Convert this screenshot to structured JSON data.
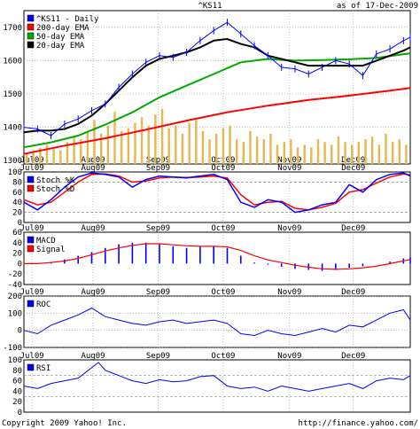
{
  "header": {
    "symbol": "^KS11",
    "as_of": "as of 17-Dec-2009"
  },
  "footer": {
    "copyright": "Copyright 2009 Yahoo! Inc.",
    "url": "http://finance.yahoo.com/"
  },
  "colors": {
    "price": "#0000ff",
    "ema200": "#ff0000",
    "ema50": "#00aa00",
    "ema20": "#000000",
    "volume": "#e6b84f",
    "stoch_k": "#0000ff",
    "stoch_d": "#ff0000",
    "macd": "#0000ff",
    "signal": "#ff0000",
    "roc": "#0000ff",
    "rsi": "#0000ff"
  },
  "x_axis": {
    "ticks": [
      {
        "label": "Jul09",
        "day": 6
      },
      {
        "label": "Aug09",
        "day": 51
      },
      {
        "label": "Sep09",
        "day": 99
      },
      {
        "label": "Oct09",
        "day": 147
      },
      {
        "label": "Nov09",
        "day": 196
      },
      {
        "label": "Dec09",
        "day": 243
      }
    ],
    "total_days": 285
  },
  "chart_data": [
    {
      "type": "line",
      "panel": "price",
      "ylim": [
        1290,
        1750
      ],
      "yticks": [
        1300,
        1400,
        1500,
        1600,
        1700
      ],
      "legend": [
        "^KS11 - Daily",
        "200-day EMA",
        "50-day EMA",
        "20-day EMA"
      ],
      "series": [
        {
          "name": "^KS11 - Daily",
          "x": [
            0,
            10,
            20,
            30,
            40,
            50,
            60,
            70,
            80,
            90,
            100,
            110,
            120,
            130,
            140,
            150,
            160,
            170,
            180,
            190,
            200,
            210,
            220,
            230,
            240,
            250,
            260,
            270,
            280,
            285
          ],
          "values": [
            1400,
            1395,
            1375,
            1410,
            1425,
            1450,
            1470,
            1520,
            1560,
            1595,
            1615,
            1610,
            1625,
            1660,
            1690,
            1715,
            1680,
            1645,
            1615,
            1580,
            1575,
            1560,
            1580,
            1600,
            1590,
            1555,
            1620,
            1635,
            1660,
            1670
          ]
        },
        {
          "name": "200-day EMA",
          "x": [
            0,
            30,
            60,
            90,
            120,
            150,
            180,
            210,
            240,
            270,
            285
          ],
          "values": [
            1320,
            1345,
            1367,
            1393,
            1420,
            1445,
            1465,
            1482,
            1495,
            1510,
            1518
          ]
        },
        {
          "name": "50-day EMA",
          "x": [
            0,
            20,
            40,
            60,
            80,
            100,
            120,
            140,
            160,
            180,
            200,
            220,
            240,
            260,
            285
          ],
          "values": [
            1340,
            1355,
            1375,
            1408,
            1445,
            1490,
            1525,
            1560,
            1595,
            1605,
            1600,
            1602,
            1604,
            1608,
            1622
          ]
        },
        {
          "name": "20-day EMA",
          "x": [
            0,
            10,
            20,
            30,
            40,
            50,
            60,
            70,
            80,
            90,
            100,
            110,
            120,
            130,
            140,
            150,
            160,
            170,
            180,
            190,
            200,
            210,
            220,
            230,
            240,
            250,
            260,
            270,
            280,
            285
          ],
          "values": [
            1385,
            1390,
            1390,
            1395,
            1410,
            1435,
            1470,
            1510,
            1550,
            1585,
            1605,
            1615,
            1625,
            1640,
            1660,
            1665,
            1650,
            1640,
            1615,
            1605,
            1595,
            1585,
            1585,
            1585,
            1585,
            1585,
            1600,
            1615,
            1630,
            1640
          ]
        }
      ]
    },
    {
      "type": "bar",
      "panel": "volume",
      "x": [
        2,
        7,
        12,
        17,
        22,
        27,
        32,
        37,
        42,
        47,
        52,
        57,
        62,
        67,
        72,
        77,
        82,
        87,
        92,
        97,
        102,
        107,
        112,
        117,
        122,
        127,
        132,
        137,
        142,
        147,
        152,
        157,
        162,
        167,
        172,
        177,
        182,
        187,
        192,
        197,
        202,
        207,
        212,
        217,
        222,
        227,
        232,
        237,
        242,
        247,
        252,
        257,
        262,
        267,
        272,
        277,
        282
      ],
      "values": [
        0.2,
        0.25,
        0.3,
        0.35,
        0.3,
        0.25,
        0.4,
        0.5,
        0.45,
        0.6,
        0.8,
        0.55,
        0.7,
        0.95,
        0.6,
        0.65,
        0.75,
        0.85,
        0.7,
        0.9,
        1.0,
        0.65,
        0.7,
        0.55,
        0.75,
        0.8,
        0.6,
        0.45,
        0.55,
        0.65,
        0.7,
        0.45,
        0.4,
        0.6,
        0.5,
        0.45,
        0.55,
        0.35,
        0.4,
        0.45,
        0.3,
        0.35,
        0.3,
        0.45,
        0.4,
        0.35,
        0.5,
        0.4,
        0.35,
        0.4,
        0.45,
        0.5,
        0.35,
        0.55,
        0.4,
        0.45,
        0.35
      ]
    },
    {
      "type": "line",
      "panel": "stochastic",
      "ylim": [
        0,
        100
      ],
      "yticks": [
        0,
        20,
        40,
        60,
        80,
        100
      ],
      "ref_lines": [
        20,
        80
      ],
      "legend": [
        "Stoch %K",
        "Stoch %D"
      ],
      "series": [
        {
          "name": "Stoch %K",
          "x": [
            0,
            10,
            20,
            30,
            40,
            50,
            60,
            70,
            80,
            90,
            100,
            110,
            120,
            130,
            140,
            150,
            160,
            170,
            180,
            190,
            200,
            210,
            220,
            230,
            240,
            250,
            260,
            270,
            280,
            285
          ],
          "values": [
            40,
            25,
            45,
            70,
            90,
            98,
            95,
            90,
            70,
            85,
            92,
            90,
            88,
            92,
            95,
            85,
            40,
            30,
            45,
            40,
            20,
            25,
            35,
            40,
            75,
            60,
            85,
            95,
            98,
            92
          ]
        },
        {
          "name": "Stoch %D",
          "x": [
            0,
            10,
            20,
            30,
            40,
            50,
            60,
            70,
            80,
            90,
            100,
            110,
            120,
            130,
            140,
            150,
            160,
            170,
            180,
            190,
            200,
            210,
            220,
            230,
            240,
            250,
            260,
            270,
            280,
            285
          ],
          "values": [
            45,
            35,
            40,
            60,
            80,
            95,
            96,
            92,
            80,
            82,
            88,
            90,
            89,
            90,
            92,
            88,
            55,
            35,
            40,
            42,
            28,
            25,
            30,
            38,
            60,
            65,
            78,
            90,
            96,
            94
          ]
        }
      ]
    },
    {
      "type": "line",
      "panel": "macd",
      "ylim": [
        -40,
        60
      ],
      "yticks": [
        -40,
        -20,
        0,
        20,
        40,
        60
      ],
      "legend": [
        "MACD",
        "Signal"
      ],
      "series": [
        {
          "name": "MACD",
          "x": [
            0,
            10,
            20,
            30,
            40,
            50,
            60,
            70,
            80,
            90,
            100,
            110,
            120,
            130,
            140,
            150,
            160,
            170,
            180,
            190,
            200,
            210,
            220,
            230,
            240,
            250,
            260,
            270,
            280,
            285
          ],
          "values": [
            0,
            0,
            3,
            8,
            15,
            22,
            30,
            37,
            40,
            40,
            37,
            33,
            30,
            32,
            33,
            30,
            15,
            2,
            -2,
            -6,
            -10,
            -12,
            -14,
            -12,
            -8,
            -5,
            0,
            4,
            10,
            12
          ]
        },
        {
          "name": "Signal",
          "x": [
            0,
            10,
            20,
            30,
            40,
            50,
            60,
            70,
            80,
            90,
            100,
            110,
            120,
            130,
            140,
            150,
            160,
            170,
            180,
            190,
            200,
            210,
            220,
            230,
            240,
            250,
            260,
            270,
            280,
            285
          ],
          "values": [
            0,
            0,
            2,
            5,
            10,
            17,
            24,
            30,
            35,
            38,
            38,
            36,
            34,
            33,
            33,
            32,
            25,
            15,
            7,
            2,
            -3,
            -7,
            -10,
            -11,
            -10,
            -8,
            -5,
            0,
            5,
            8
          ]
        }
      ]
    },
    {
      "type": "line",
      "panel": "roc",
      "ylim": [
        -100,
        200
      ],
      "yticks": [
        -100,
        0,
        100,
        200
      ],
      "legend": [
        "ROC"
      ],
      "series": [
        {
          "name": "ROC",
          "x": [
            0,
            10,
            20,
            30,
            40,
            50,
            60,
            70,
            80,
            90,
            100,
            110,
            120,
            130,
            140,
            150,
            160,
            170,
            180,
            190,
            200,
            210,
            220,
            230,
            240,
            250,
            260,
            270,
            280,
            285
          ],
          "values": [
            0,
            -20,
            30,
            60,
            90,
            130,
            80,
            60,
            40,
            30,
            50,
            60,
            40,
            50,
            60,
            40,
            -20,
            -30,
            0,
            -20,
            -30,
            -10,
            10,
            -10,
            30,
            20,
            60,
            100,
            120,
            60
          ]
        }
      ]
    },
    {
      "type": "line",
      "panel": "rsi",
      "ylim": [
        0,
        100
      ],
      "yticks": [
        0,
        20,
        40,
        60,
        80,
        100
      ],
      "ref_lines": [
        30,
        70
      ],
      "legend": [
        "RSI"
      ],
      "series": [
        {
          "name": "RSI",
          "x": [
            0,
            10,
            20,
            30,
            40,
            50,
            55,
            60,
            70,
            80,
            90,
            100,
            110,
            120,
            130,
            140,
            150,
            160,
            170,
            180,
            190,
            200,
            210,
            220,
            230,
            240,
            250,
            260,
            270,
            280,
            285
          ],
          "values": [
            50,
            45,
            55,
            60,
            65,
            85,
            95,
            80,
            70,
            60,
            55,
            62,
            58,
            60,
            68,
            70,
            50,
            45,
            48,
            40,
            50,
            45,
            40,
            45,
            50,
            55,
            45,
            60,
            65,
            62,
            70
          ]
        }
      ]
    }
  ]
}
